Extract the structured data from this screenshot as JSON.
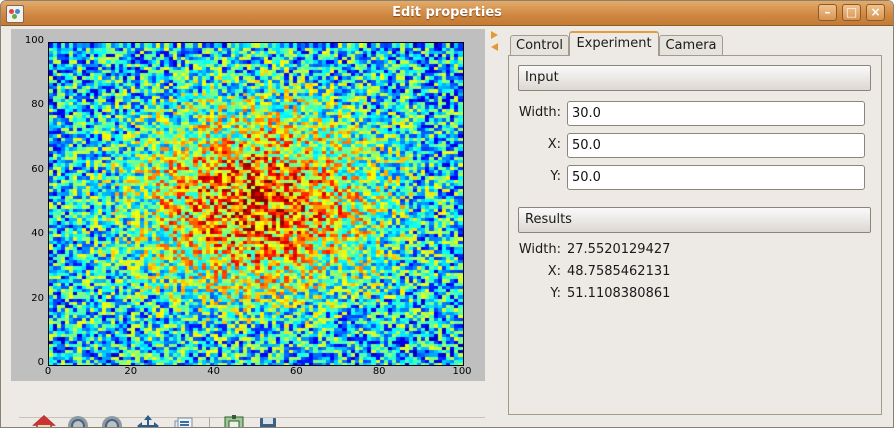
{
  "window": {
    "title": "Edit properties",
    "minimize_glyph": "–",
    "maximize_glyph": "□",
    "close_glyph": "×"
  },
  "plot": {
    "x_ticks": [
      "0",
      "20",
      "40",
      "60",
      "80",
      "100"
    ],
    "y_ticks": [
      "0",
      "20",
      "40",
      "60",
      "80",
      "100"
    ],
    "xlim": [
      0,
      100
    ],
    "ylim": [
      0,
      100
    ],
    "colormap": "jet",
    "hotspot_center": [
      50,
      50
    ],
    "hotspot_width": 30
  },
  "toolbar": {
    "icons": [
      "home-icon",
      "back-icon",
      "forward-icon",
      "pan-icon",
      "zoom-icon",
      "subplots-icon",
      "save-icon"
    ]
  },
  "tabs": [
    {
      "label": "Control",
      "active": false
    },
    {
      "label": "Experiment",
      "active": true
    },
    {
      "label": "Camera",
      "active": false
    }
  ],
  "input_section": {
    "header": "Input",
    "fields": [
      {
        "label": "Width:",
        "value": "30.0"
      },
      {
        "label": "X:",
        "value": "50.0"
      },
      {
        "label": "Y:",
        "value": "50.0"
      }
    ]
  },
  "results_section": {
    "header": "Results",
    "rows": [
      {
        "label": "Width:",
        "value": "27.5520129427"
      },
      {
        "label": "X:",
        "value": "48.7585462131"
      },
      {
        "label": "Y:",
        "value": "51.1108380861"
      }
    ]
  },
  "colors": {
    "titlebar": "#cf8640",
    "active_tab_accent": "#e59b43"
  }
}
